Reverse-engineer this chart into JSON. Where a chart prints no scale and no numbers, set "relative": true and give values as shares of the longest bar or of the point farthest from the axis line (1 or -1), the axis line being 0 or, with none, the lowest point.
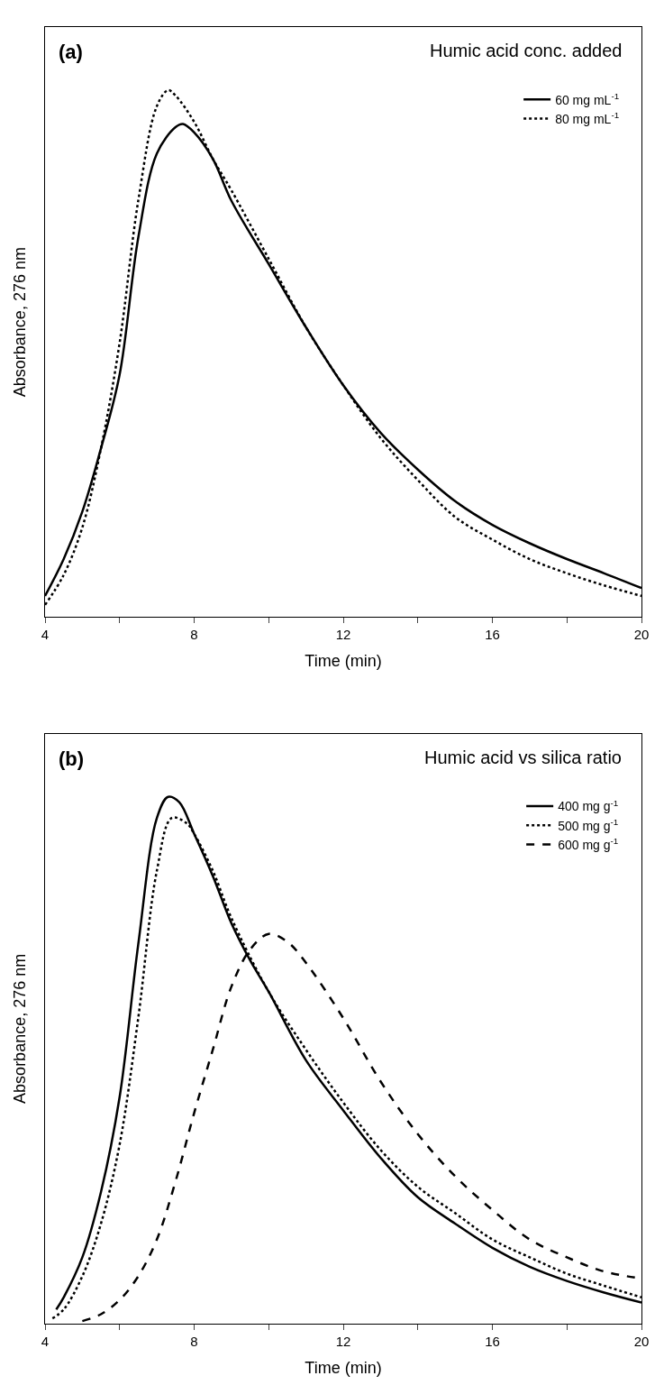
{
  "chart_data": [
    {
      "type": "line",
      "title": "Humic acid conc. added",
      "annotations": [
        "(a)"
      ],
      "xlabel": "Time (min)",
      "ylabel": "Absorbance, 276 nm",
      "relative": true,
      "xlim": [
        4,
        20
      ],
      "xticks": [
        4,
        {
          "value": 6,
          "label": null
        },
        8,
        {
          "value": 10,
          "label": null
        },
        12,
        {
          "value": 14,
          "label": null
        },
        16,
        {
          "value": 18,
          "label": null
        },
        20
      ],
      "legend": "top right",
      "tick_labels": "x",
      "x": [
        4,
        4.5,
        5,
        5.5,
        6,
        6.5,
        7,
        7.5,
        7.7,
        8,
        8.5,
        9,
        10,
        11,
        12,
        13,
        14,
        15,
        16,
        17,
        18,
        19,
        20
      ],
      "series": [
        {
          "name": "60 mg mL$^{-1}$",
          "color": "#000000",
          "line_style": "solid",
          "values": [
            0.04,
            0.11,
            0.2,
            0.32,
            0.46,
            0.72,
            0.88,
            0.93,
            0.936,
            0.92,
            0.87,
            0.79,
            0.67,
            0.55,
            0.44,
            0.35,
            0.28,
            0.22,
            0.175,
            0.14,
            0.11,
            0.083,
            0.055
          ]
        },
        {
          "name": "80 mg mL$^{-1}$",
          "color": "#000000",
          "line_style": "dotted",
          "x": [
            4,
            4.5,
            5,
            5.5,
            6,
            6.5,
            7,
            7.3,
            7.5,
            8,
            8.5,
            9,
            10,
            11,
            12,
            13,
            14,
            15,
            16,
            17,
            18,
            19,
            20
          ],
          "values": [
            0.023,
            0.08,
            0.17,
            0.32,
            0.52,
            0.79,
            0.97,
            1.0,
            0.99,
            0.94,
            0.87,
            0.81,
            0.68,
            0.55,
            0.44,
            0.34,
            0.26,
            0.19,
            0.147,
            0.11,
            0.083,
            0.06,
            0.04
          ]
        }
      ]
    },
    {
      "type": "line",
      "title": "Humic acid vs silica ratio",
      "annotations": [
        "(b)"
      ],
      "xlabel": "Time (min)",
      "ylabel": "Absorbance, 276 nm",
      "relative": true,
      "xlim": [
        4,
        20
      ],
      "xticks": [
        4,
        {
          "value": 6,
          "label": null
        },
        8,
        {
          "value": 10,
          "label": null
        },
        12,
        {
          "value": 14,
          "label": null
        },
        16,
        {
          "value": 18,
          "label": null
        },
        20
      ],
      "legend": "top right",
      "tick_labels": "x",
      "series": [
        {
          "name": "400 mg g$^{-1}$",
          "color": "#000000",
          "line_style": "solid",
          "x": [
            4.3,
            4.5,
            5,
            5.5,
            6,
            6.5,
            7,
            7.3,
            7.6,
            8,
            8.5,
            9,
            9.5,
            10,
            11,
            12,
            13,
            14,
            15,
            16,
            17,
            18,
            19,
            20
          ],
          "values": [
            0.027,
            0.05,
            0.126,
            0.25,
            0.43,
            0.72,
            0.96,
            1.0,
            0.99,
            0.93,
            0.85,
            0.76,
            0.69,
            0.63,
            0.5,
            0.405,
            0.315,
            0.24,
            0.19,
            0.144,
            0.108,
            0.081,
            0.059,
            0.04
          ]
        },
        {
          "name": "500 mg g$^{-1}$",
          "color": "#000000",
          "line_style": "dotted",
          "x": [
            4.2,
            4.5,
            5,
            5.5,
            6,
            6.5,
            7,
            7.4,
            7.8,
            8,
            8.5,
            9,
            10,
            11,
            12,
            13,
            14,
            15,
            16,
            17,
            18,
            19,
            20
          ],
          "values": [
            0.01,
            0.027,
            0.09,
            0.19,
            0.34,
            0.58,
            0.86,
            0.96,
            0.95,
            0.93,
            0.86,
            0.77,
            0.63,
            0.52,
            0.42,
            0.33,
            0.26,
            0.21,
            0.16,
            0.126,
            0.095,
            0.072,
            0.05
          ]
        },
        {
          "name": "600 mg g$^{-1}$",
          "color": "#000000",
          "line_style": "dashed",
          "x": [
            5,
            5.5,
            6,
            6.5,
            7,
            7.5,
            8,
            8.5,
            9,
            9.5,
            10,
            10.5,
            11,
            12,
            13,
            14,
            15,
            16,
            17,
            18,
            19,
            20
          ],
          "values": [
            0.005,
            0.018,
            0.045,
            0.09,
            0.16,
            0.27,
            0.4,
            0.52,
            0.64,
            0.71,
            0.74,
            0.725,
            0.685,
            0.58,
            0.46,
            0.36,
            0.28,
            0.216,
            0.16,
            0.126,
            0.099,
            0.086
          ]
        }
      ]
    }
  ]
}
